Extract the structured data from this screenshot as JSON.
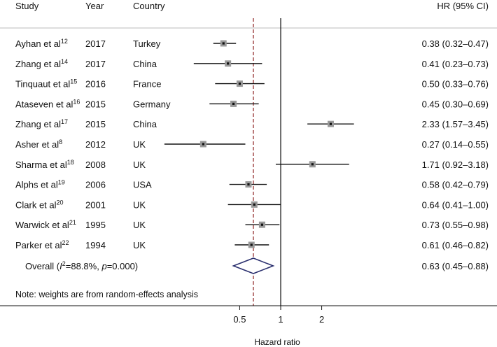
{
  "chart_data": {
    "type": "forest",
    "headers": {
      "study": "Study",
      "year": "Year",
      "country": "Country",
      "hr": "HR (95% CI)"
    },
    "xlabel": "Hazard ratio",
    "x_scale": "log",
    "x_ticks": [
      0.5,
      1,
      2
    ],
    "x_tick_labels": [
      "0.5",
      "1",
      "2"
    ],
    "reference_line": 1,
    "studies": [
      {
        "author": "Ayhan et al",
        "ref": "12",
        "year": "2017",
        "country": "Turkey",
        "hr": 0.38,
        "lo": 0.32,
        "hi": 0.47,
        "label": "0.38 (0.32–0.47)"
      },
      {
        "author": "Zhang et al",
        "ref": "14",
        "year": "2017",
        "country": "China",
        "hr": 0.41,
        "lo": 0.23,
        "hi": 0.73,
        "label": "0.41 (0.23–0.73)"
      },
      {
        "author": "Tinquaut et al",
        "ref": "15",
        "year": "2016",
        "country": "France",
        "hr": 0.5,
        "lo": 0.33,
        "hi": 0.76,
        "label": "0.50 (0.33–0.76)"
      },
      {
        "author": "Ataseven et al",
        "ref": "16",
        "year": "2015",
        "country": "Germany",
        "hr": 0.45,
        "lo": 0.3,
        "hi": 0.69,
        "label": "0.45 (0.30–0.69)"
      },
      {
        "author": "Zhang et al",
        "ref": "17",
        "year": "2015",
        "country": "China",
        "hr": 2.33,
        "lo": 1.57,
        "hi": 3.45,
        "label": "2.33 (1.57–3.45)"
      },
      {
        "author": "Asher et al",
        "ref": "8",
        "year": "2012",
        "country": "UK",
        "hr": 0.27,
        "lo": 0.14,
        "hi": 0.55,
        "label": "0.27 (0.14–0.55)"
      },
      {
        "author": "Sharma et al",
        "ref": "18",
        "year": "2008",
        "country": "UK",
        "hr": 1.71,
        "lo": 0.92,
        "hi": 3.18,
        "label": "1.71 (0.92–3.18)"
      },
      {
        "author": "Alphs et al",
        "ref": "19",
        "year": "2006",
        "country": "USA",
        "hr": 0.58,
        "lo": 0.42,
        "hi": 0.79,
        "label": "0.58 (0.42–0.79)"
      },
      {
        "author": "Clark et al",
        "ref": "20",
        "year": "2001",
        "country": "UK",
        "hr": 0.64,
        "lo": 0.41,
        "hi": 1.0,
        "label": "0.64 (0.41–1.00)"
      },
      {
        "author": "Warwick et al",
        "ref": "21",
        "year": "1995",
        "country": "UK",
        "hr": 0.73,
        "lo": 0.55,
        "hi": 0.98,
        "label": "0.73 (0.55–0.98)"
      },
      {
        "author": "Parker et al",
        "ref": "22",
        "year": "1994",
        "country": "UK",
        "hr": 0.61,
        "lo": 0.46,
        "hi": 0.82,
        "label": "0.61 (0.46–0.82)"
      }
    ],
    "overall": {
      "label_prefix": "Overall (",
      "i2_symbol": "I",
      "i2_sup": "2",
      "i2_rest": "=88.8%, ",
      "p_symbol": "p",
      "p_rest": "=0.000)",
      "hr": 0.63,
      "lo": 0.45,
      "hi": 0.88,
      "label": "0.63 (0.45–0.88)"
    },
    "note": "Note: weights are from random-effects analysis",
    "colors": {
      "text": "#111111",
      "ci_line": "#111111",
      "box": "#999999",
      "diamond": "#2a2f6e",
      "overall_line": "#8b1a1a",
      "separator": "#bbbbbb"
    }
  }
}
